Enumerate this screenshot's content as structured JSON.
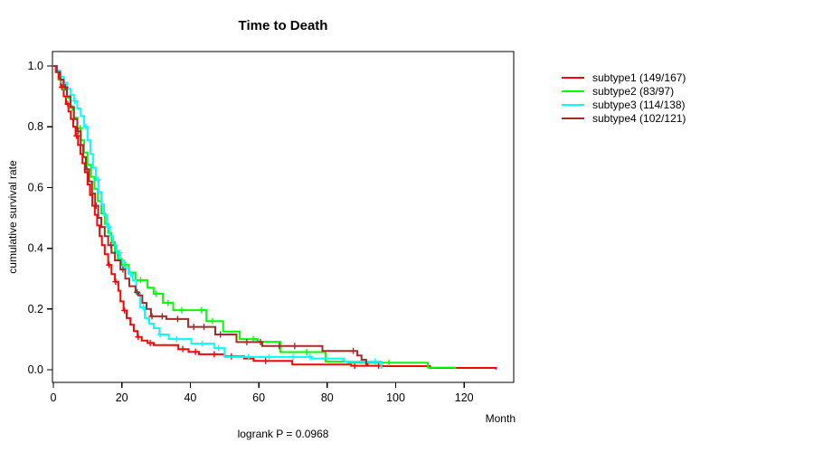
{
  "title": "Time to Death",
  "y_axis_label": "cumulative survival rate",
  "x_axis_label": "Month",
  "footnote": "logrank P = 0.0968",
  "legend": {
    "position": "right",
    "items": [
      {
        "label": "subtype1 (149/167)",
        "color": "#FF0000"
      },
      {
        "label": "subtype2 (83/97)",
        "color": "#00FF00"
      },
      {
        "label": "subtype3 (114/138)",
        "color": "#00FFFF"
      },
      {
        "label": "subtype4 (102/121)",
        "color": "#A52A2A"
      }
    ]
  },
  "chart_data": {
    "type": "line",
    "subtype": "kaplan-meier-step-curves",
    "title": "Time to Death",
    "xlabel": "Month",
    "ylabel": "cumulative survival rate",
    "xlim": [
      0,
      134
    ],
    "ylim": [
      0,
      1
    ],
    "x_ticks": [
      "0",
      "20",
      "40",
      "60",
      "80",
      "100",
      "120"
    ],
    "y_ticks": [
      "0.0",
      "0.2",
      "0.4",
      "0.6",
      "0.8",
      "1.0"
    ],
    "grid": false,
    "box": true,
    "legend_position": "right",
    "annotation": "logrank P = 0.0968",
    "censor_marker": "plus",
    "series": [
      {
        "name": "subtype1 (149/167)",
        "events": 149,
        "total": 167,
        "color": "#FF0000",
        "steps": [
          [
            0,
            1.0
          ],
          [
            0.7,
            0.98
          ],
          [
            1.5,
            0.955
          ],
          [
            2.2,
            0.93
          ],
          [
            3,
            0.9
          ],
          [
            3.7,
            0.875
          ],
          [
            4.4,
            0.85
          ],
          [
            5.1,
            0.825
          ],
          [
            5.8,
            0.8
          ],
          [
            6.5,
            0.77
          ],
          [
            7.2,
            0.74
          ],
          [
            7.9,
            0.71
          ],
          [
            8.5,
            0.68
          ],
          [
            9.2,
            0.65
          ],
          [
            10,
            0.61
          ],
          [
            10.7,
            0.575
          ],
          [
            11.4,
            0.54
          ],
          [
            12.1,
            0.51
          ],
          [
            12.8,
            0.475
          ],
          [
            13.5,
            0.44
          ],
          [
            14.2,
            0.41
          ],
          [
            15,
            0.38
          ],
          [
            16,
            0.345
          ],
          [
            17,
            0.315
          ],
          [
            18,
            0.29
          ],
          [
            19,
            0.26
          ],
          [
            19.6,
            0.225
          ],
          [
            20.5,
            0.195
          ],
          [
            21.4,
            0.17
          ],
          [
            22.5,
            0.148
          ],
          [
            23.5,
            0.127
          ],
          [
            24.6,
            0.108
          ],
          [
            25.8,
            0.096
          ],
          [
            27.5,
            0.088
          ],
          [
            29.3,
            0.081
          ],
          [
            36.5,
            0.068
          ],
          [
            39.5,
            0.059
          ],
          [
            42.5,
            0.051
          ],
          [
            50,
            0.044
          ],
          [
            55.7,
            0.037
          ],
          [
            58.5,
            0.029
          ],
          [
            69.8,
            0.017
          ],
          [
            87,
            0.013
          ],
          [
            96,
            0.012
          ],
          [
            110,
            0.006
          ],
          [
            129.3,
            0.001
          ]
        ],
        "censor_times": [
          2.5,
          4.2,
          6.8,
          16.3,
          18.2,
          20.8,
          24.8,
          28.3,
          37.8,
          41.5,
          47,
          52,
          62,
          88,
          95
        ]
      },
      {
        "name": "subtype2 (83/97)",
        "events": 83,
        "total": 97,
        "color": "#00FF00",
        "steps": [
          [
            0,
            1.0
          ],
          [
            1,
            0.98
          ],
          [
            2,
            0.955
          ],
          [
            3,
            0.925
          ],
          [
            4,
            0.895
          ],
          [
            5,
            0.862
          ],
          [
            6,
            0.83
          ],
          [
            7,
            0.795
          ],
          [
            8,
            0.755
          ],
          [
            9,
            0.715
          ],
          [
            10,
            0.675
          ],
          [
            11,
            0.635
          ],
          [
            12,
            0.595
          ],
          [
            13,
            0.555
          ],
          [
            14,
            0.515
          ],
          [
            15,
            0.48
          ],
          [
            16,
            0.45
          ],
          [
            17,
            0.42
          ],
          [
            18,
            0.39
          ],
          [
            18.8,
            0.365
          ],
          [
            20,
            0.345
          ],
          [
            22,
            0.32
          ],
          [
            24,
            0.295
          ],
          [
            27.5,
            0.27
          ],
          [
            29.3,
            0.25
          ],
          [
            32,
            0.22
          ],
          [
            35,
            0.196
          ],
          [
            44.7,
            0.16
          ],
          [
            49.6,
            0.126
          ],
          [
            54.4,
            0.101
          ],
          [
            59.7,
            0.092
          ],
          [
            66.3,
            0.058
          ],
          [
            79.5,
            0.027
          ],
          [
            86,
            0.023
          ],
          [
            109.4,
            0.007
          ],
          [
            117.4,
            0.002
          ]
        ],
        "censor_times": [
          2.2,
          5.5,
          7.8,
          21,
          25.5,
          30,
          33.5,
          37.5,
          43.3,
          46.5,
          58.4,
          74,
          98
        ]
      },
      {
        "name": "subtype3 (114/138)",
        "events": 114,
        "total": 138,
        "color": "#00FFFF",
        "steps": [
          [
            0,
            1.0
          ],
          [
            1,
            0.985
          ],
          [
            2,
            0.965
          ],
          [
            3,
            0.945
          ],
          [
            4,
            0.925
          ],
          [
            5,
            0.905
          ],
          [
            6,
            0.885
          ],
          [
            7,
            0.86
          ],
          [
            8,
            0.835
          ],
          [
            9,
            0.8
          ],
          [
            10,
            0.755
          ],
          [
            10.8,
            0.71
          ],
          [
            11.6,
            0.665
          ],
          [
            12.4,
            0.625
          ],
          [
            13.2,
            0.585
          ],
          [
            14,
            0.545
          ],
          [
            14.8,
            0.51
          ],
          [
            15.6,
            0.47
          ],
          [
            16.5,
            0.44
          ],
          [
            17.5,
            0.41
          ],
          [
            18.5,
            0.385
          ],
          [
            19.5,
            0.36
          ],
          [
            20.7,
            0.335
          ],
          [
            22.2,
            0.315
          ],
          [
            23.2,
            0.295
          ],
          [
            24.2,
            0.25
          ],
          [
            25.4,
            0.205
          ],
          [
            26.7,
            0.17
          ],
          [
            28,
            0.152
          ],
          [
            29.3,
            0.137
          ],
          [
            31,
            0.116
          ],
          [
            33.7,
            0.101
          ],
          [
            40.3,
            0.086
          ],
          [
            47,
            0.071
          ],
          [
            50,
            0.042
          ],
          [
            75.6,
            0.037
          ],
          [
            84.8,
            0.027
          ],
          [
            95.8,
            0.003
          ]
        ],
        "censor_times": [
          3.2,
          6.2,
          9.5,
          13,
          16.2,
          19.3,
          22.6,
          26.3,
          31.2,
          36,
          43.5,
          48.3,
          57,
          63,
          70,
          75,
          94
        ]
      },
      {
        "name": "subtype4 (102/121)",
        "events": 102,
        "total": 121,
        "color": "#A52A2A",
        "steps": [
          [
            0,
            1.0
          ],
          [
            1,
            0.98
          ],
          [
            2,
            0.955
          ],
          [
            3,
            0.93
          ],
          [
            4,
            0.9
          ],
          [
            5,
            0.865
          ],
          [
            6,
            0.825
          ],
          [
            7,
            0.785
          ],
          [
            8,
            0.74
          ],
          [
            8.7,
            0.7
          ],
          [
            9.5,
            0.66
          ],
          [
            10.4,
            0.62
          ],
          [
            11.3,
            0.58
          ],
          [
            12.2,
            0.54
          ],
          [
            13.1,
            0.5
          ],
          [
            14,
            0.47
          ],
          [
            15,
            0.44
          ],
          [
            16,
            0.41
          ],
          [
            17,
            0.385
          ],
          [
            18,
            0.36
          ],
          [
            19.6,
            0.33
          ],
          [
            21,
            0.3
          ],
          [
            22.2,
            0.275
          ],
          [
            24,
            0.255
          ],
          [
            24.9,
            0.245
          ],
          [
            26,
            0.22
          ],
          [
            27.2,
            0.2
          ],
          [
            28.5,
            0.176
          ],
          [
            33,
            0.167
          ],
          [
            39.4,
            0.141
          ],
          [
            47.3,
            0.116
          ],
          [
            53.5,
            0.091
          ],
          [
            61,
            0.078
          ],
          [
            78.6,
            0.062
          ],
          [
            88.8,
            0.047
          ],
          [
            90,
            0.033
          ],
          [
            91.4,
            0.018
          ],
          [
            91.8,
            0.01
          ]
        ],
        "censor_times": [
          3.5,
          7.2,
          9.8,
          12.5,
          16.8,
          20.3,
          24.5,
          28.8,
          31.8,
          36.3,
          41,
          44,
          48.8,
          56.5,
          60.5,
          66,
          70.5,
          87.6
        ]
      }
    ]
  }
}
